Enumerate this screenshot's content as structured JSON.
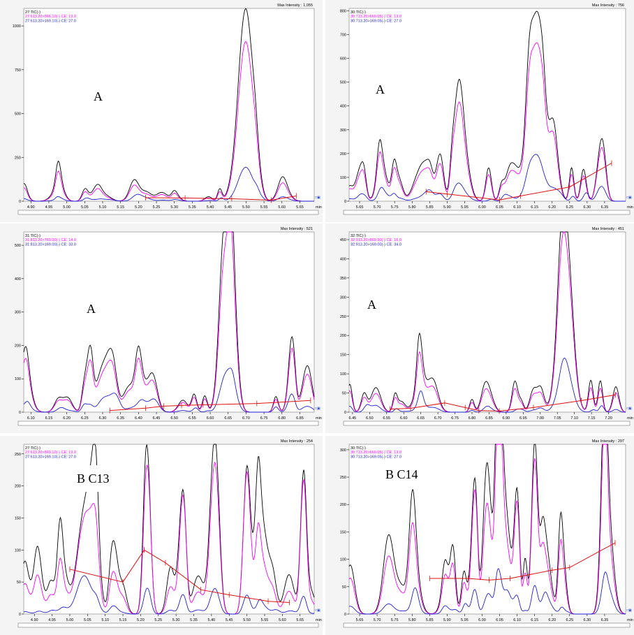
{
  "chart_data": [
    {
      "type": "line",
      "label": "A",
      "max_intensity": "Max Intensity : 1,055",
      "legend": [
        "27:TIC(-)",
        "27:613.20>566.10(-) CE: 13.0",
        "27:613.20>169.10(-) CE: 27.0"
      ],
      "xlim": [
        4.88,
        5.69
      ],
      "ylim": [
        0,
        1100
      ],
      "xticks": [
        "4.90",
        "4.95",
        "5.00",
        "5.05",
        "5.10",
        "5.15",
        "5.20",
        "5.25",
        "5.30",
        "5.35",
        "5.40",
        "5.45",
        "5.50",
        "5.55",
        "5.60",
        "5.65"
      ],
      "yticks": [
        "0",
        "250",
        "500",
        "750",
        "1000"
      ],
      "x_unit": "min",
      "peaks": [
        [
          5.5,
          1055,
          880,
          190,
          0.03
        ]
      ],
      "noise": [
        80,
        60,
        25
      ],
      "baseline": [
        [
          5.22,
          20
        ],
        [
          5.33,
          18
        ],
        [
          5.46,
          14
        ],
        [
          5.57,
          6
        ],
        [
          5.64,
          30
        ]
      ]
    },
    {
      "type": "line",
      "label": "A",
      "max_intensity": "Max Intensity : 756",
      "legend": [
        "30:TIC(-)",
        "30:713.20>669.05(-) CE: 13.0",
        "30:713.20>169.05(-) CE: 27.0"
      ],
      "xlim": [
        5.62,
        6.41
      ],
      "ylim": [
        0,
        810
      ],
      "xticks": [
        "5.65",
        "5.70",
        "5.75",
        "5.80",
        "5.85",
        "5.90",
        "5.95",
        "6.00",
        "6.05",
        "6.10",
        "6.15",
        "6.20",
        "6.25",
        "6.30",
        "6.35"
      ],
      "yticks": [
        "0",
        "100",
        "200",
        "300",
        "400",
        "500",
        "600",
        "700",
        "800"
      ],
      "x_unit": "min",
      "peaks": [
        [
          6.155,
          740,
          620,
          195,
          0.03
        ],
        [
          5.93,
          240,
          200,
          50,
          0.018
        ],
        [
          5.88,
          200,
          160,
          30,
          0.015
        ],
        [
          6.2,
          220,
          190,
          40,
          0.016
        ],
        [
          6.34,
          230,
          200,
          60,
          0.016
        ]
      ],
      "noise": [
        150,
        120,
        40
      ],
      "baseline": [
        [
          5.84,
          40
        ],
        [
          5.9,
          30
        ],
        [
          6.05,
          5
        ],
        [
          6.11,
          22
        ],
        [
          6.25,
          60
        ],
        [
          6.37,
          160
        ]
      ]
    },
    {
      "type": "line",
      "label": "A",
      "max_intensity": "Max Intensity : 521",
      "legend": [
        "31:TIC(-)",
        "31:813.20>769.00(-) CE: 14.0",
        "31:813.20>169.00(-) CE: 33.0"
      ],
      "xlim": [
        6.08,
        6.89
      ],
      "ylim": [
        0,
        540
      ],
      "xticks": [
        "6.10",
        "6.15",
        "6.20",
        "6.25",
        "6.30",
        "6.35",
        "6.40",
        "6.45",
        "6.50",
        "6.55",
        "6.60",
        "6.65",
        "6.70",
        "6.75",
        "6.80",
        "6.85"
      ],
      "yticks": [
        "0",
        "100",
        "200",
        "300",
        "400",
        "500"
      ],
      "x_unit": "min",
      "peaks": [
        [
          6.65,
          510,
          420,
          100,
          0.025
        ],
        [
          6.265,
          180,
          140,
          20,
          0.012
        ],
        [
          6.83,
          150,
          130,
          30,
          0.012
        ]
      ],
      "noise": [
        110,
        90,
        40
      ],
      "baseline": [
        [
          6.32,
          5
        ],
        [
          6.42,
          12
        ],
        [
          6.47,
          18
        ],
        [
          6.52,
          20
        ],
        [
          6.58,
          22
        ],
        [
          6.73,
          26
        ],
        [
          6.88,
          35
        ]
      ]
    },
    {
      "type": "line",
      "label": "A",
      "max_intensity": "Max Intensity : 451",
      "legend": [
        "32:TIC(-)",
        "32:913.20>869.90(-) CE: 16.0",
        "32:913.20>169.00(-) CE: 34.0"
      ],
      "xlim": [
        6.44,
        7.25
      ],
      "ylim": [
        0,
        470
      ],
      "xticks": [
        "6.45",
        "6.50",
        "6.55",
        "6.60",
        "6.65",
        "6.70",
        "6.75",
        "6.80",
        "6.85",
        "6.90",
        "6.95",
        "7.00",
        "7.05",
        "7.10",
        "7.15",
        "7.20"
      ],
      "yticks": [
        "0",
        "50",
        "100",
        "150",
        "200",
        "250",
        "300",
        "350",
        "400",
        "450"
      ],
      "x_unit": "min",
      "peaks": [
        [
          7.075,
          450,
          395,
          100,
          0.03
        ]
      ],
      "noise": [
        85,
        65,
        30
      ],
      "baseline": [
        [
          6.56,
          8
        ],
        [
          6.62,
          10
        ],
        [
          6.72,
          24
        ],
        [
          6.78,
          12
        ],
        [
          6.82,
          4
        ],
        [
          6.88,
          3
        ],
        [
          6.98,
          12
        ],
        [
          7.12,
          30
        ],
        [
          7.22,
          45
        ]
      ]
    },
    {
      "type": "line",
      "label": "B C13",
      "max_intensity": "Max Intensity : 254",
      "legend": [
        "27:TIC(-)",
        "27:613.20>569.10(-) CE: 13.0",
        "27:613.20>169.10(-) CE: 27.0"
      ],
      "xlim": [
        4.87,
        5.69
      ],
      "ylim": [
        0,
        265
      ],
      "xticks": [
        "4.90",
        "4.95",
        "5.00",
        "5.05",
        "5.10",
        "5.15",
        "5.20",
        "5.25",
        "5.30",
        "5.35",
        "5.40",
        "5.45",
        "5.50",
        "5.55",
        "5.60",
        "5.65"
      ],
      "yticks": [
        "0",
        "50",
        "100",
        "150",
        "200",
        "250"
      ],
      "x_unit": "min",
      "peaks": [
        [
          5.41,
          254,
          225,
          40,
          0.018
        ],
        [
          5.22,
          210,
          205,
          38,
          0.014
        ],
        [
          5.32,
          190,
          185,
          30,
          0.013
        ],
        [
          5.5,
          225,
          220,
          30,
          0.014
        ],
        [
          5.66,
          205,
          200,
          28,
          0.012
        ],
        [
          5.04,
          150,
          140,
          60,
          0.028
        ]
      ],
      "noise": [
        95,
        55,
        12
      ],
      "baseline": [
        [
          5.0,
          70
        ],
        [
          5.15,
          50
        ],
        [
          5.21,
          100
        ],
        [
          5.27,
          80
        ],
        [
          5.37,
          38
        ],
        [
          5.45,
          30
        ],
        [
          5.56,
          20
        ],
        [
          5.62,
          18
        ]
      ]
    },
    {
      "type": "line",
      "label": "B C14",
      "max_intensity": "Max Intensity : 297",
      "legend": [
        "30:TIC(-)",
        "30:713.20>669.05(-) CE: 13.0",
        "30:713.20>169.05(-) CE: 27.0"
      ],
      "xlim": [
        5.62,
        6.41
      ],
      "ylim": [
        0,
        310
      ],
      "xticks": [
        "5.65",
        "5.70",
        "5.75",
        "5.80",
        "5.85",
        "5.90",
        "5.95",
        "6.00",
        "6.05",
        "6.10",
        "6.15",
        "6.20",
        "6.25",
        "6.30",
        "6.35"
      ],
      "yticks": [
        "0",
        "50",
        "100",
        "150",
        "200",
        "250",
        "300"
      ],
      "x_unit": "min",
      "peaks": [
        [
          6.15,
          297,
          270,
          50,
          0.012
        ],
        [
          6.05,
          255,
          240,
          45,
          0.011
        ],
        [
          6.35,
          245,
          230,
          40,
          0.011
        ],
        [
          5.98,
          230,
          215,
          40,
          0.011
        ],
        [
          6.1,
          220,
          200,
          30,
          0.011
        ]
      ],
      "noise": [
        150,
        110,
        40
      ],
      "baseline": [
        [
          5.85,
          65
        ],
        [
          5.96,
          65
        ],
        [
          6.02,
          62
        ],
        [
          6.08,
          65
        ],
        [
          6.2,
          80
        ],
        [
          6.25,
          85
        ],
        [
          6.38,
          130
        ]
      ]
    }
  ]
}
